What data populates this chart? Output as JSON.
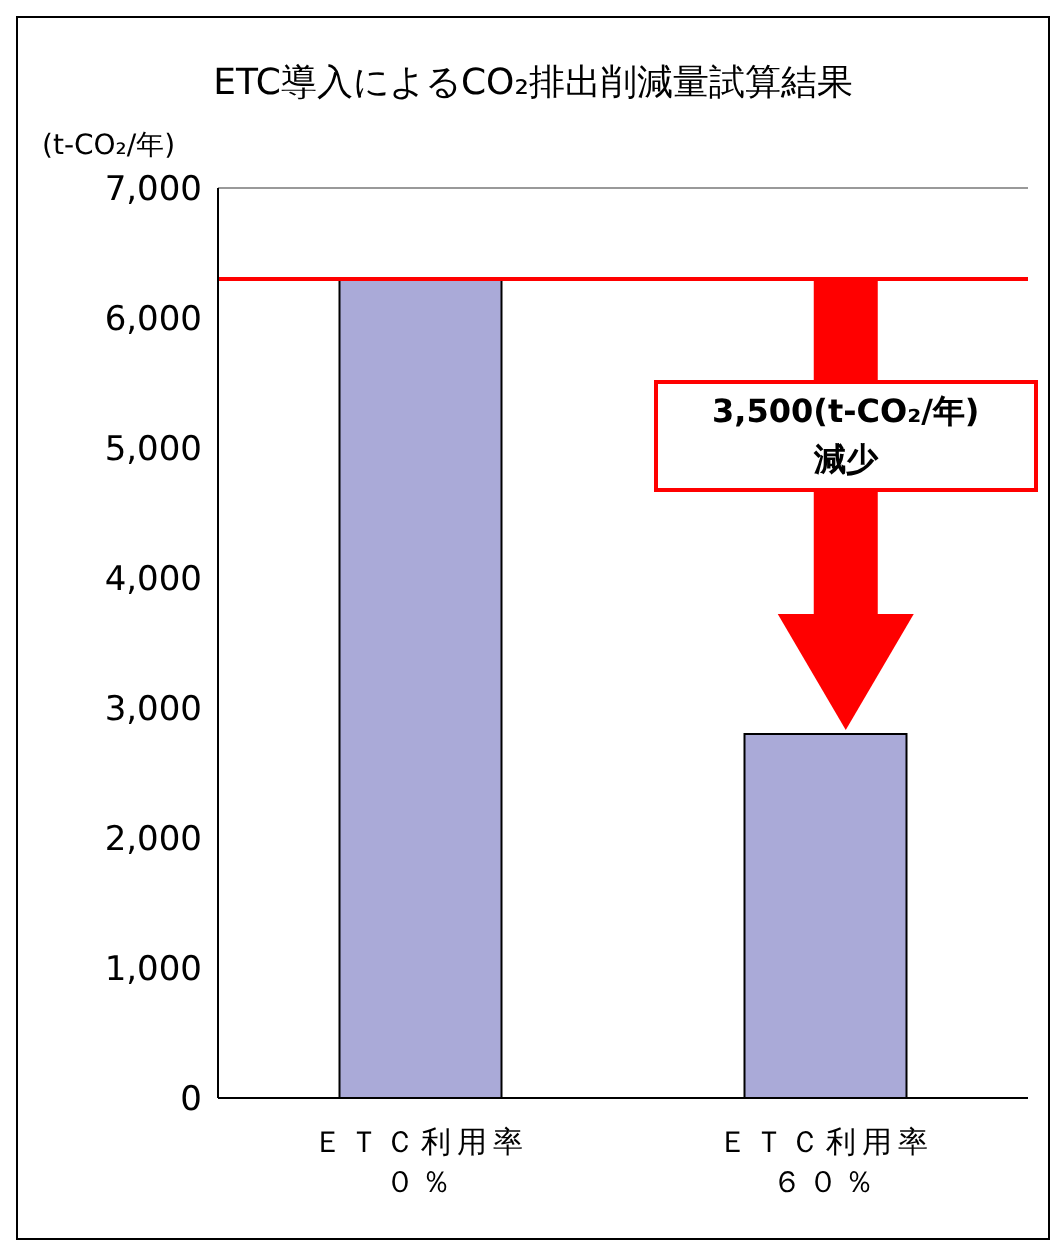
{
  "chart_data": {
    "type": "bar",
    "title": "ETC導入によるCO₂排出削減量試算結果",
    "ylabel": "(t-CO₂/年)",
    "categories": [
      "ＥＴＣ利用率０％",
      "ＥＴＣ利用率６０％"
    ],
    "values": [
      6300,
      2800
    ],
    "color": "#aaaad8",
    "ylim": [
      0,
      7000
    ],
    "yticks": [
      0,
      {
        "value": 1000,
        "label": "1,000"
      },
      {
        "value": 2000,
        "label": "2,000"
      },
      {
        "value": 3000,
        "label": "3,000"
      },
      {
        "value": 4000,
        "label": "4,000"
      },
      {
        "value": 5000,
        "label": "5,000"
      },
      {
        "value": 6000,
        "label": "6,000"
      },
      {
        "value": 7000,
        "label": "7,000"
      }
    ],
    "grid": false,
    "ref_lines": [
      {
        "axis": "y",
        "value": 6300,
        "color": "#ff0000"
      }
    ],
    "annotations": [
      "3,500(t-CO₂/年)\n減少"
    ]
  }
}
